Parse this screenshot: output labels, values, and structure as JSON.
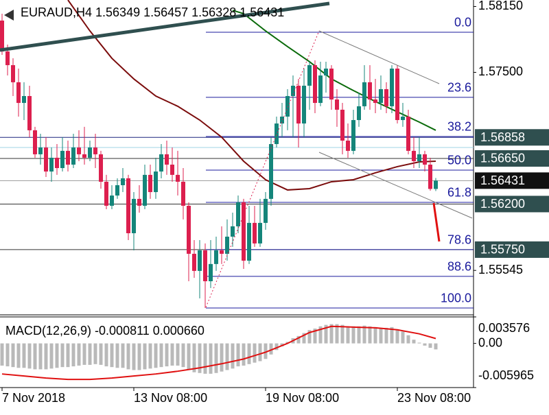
{
  "chart_data": [
    {
      "type": "candlestick",
      "title": "EURAUD,H4  1.56349 1.56457 1.56328 1.56431",
      "colors": {
        "up": "#14857a",
        "down": "#dc1f4e"
      },
      "xlim": [
        -0.375,
        85.875
      ],
      "xticks": [
        {
          "value": 0,
          "label": "7 Nov 2018"
        },
        {
          "value": 24,
          "label": "13 Nov 08:00"
        },
        {
          "value": 48,
          "label": "19 Nov 08:00"
        },
        {
          "value": 72,
          "label": "23 Nov 08:00"
        }
      ],
      "ylim": [
        1.55113,
        1.58214
      ],
      "yticks": [
        {
          "value": 1.5815,
          "label": "1.58150"
        },
        {
          "value": 1.575,
          "label": "1.57500"
        },
        1.55545
      ],
      "open": [
        1.58011,
        1.57706,
        1.57571,
        1.57402,
        1.57198,
        1.57266,
        1.56928,
        1.56691,
        1.56758,
        1.56521,
        1.56657,
        1.56555,
        1.56725,
        1.56589,
        1.56758,
        1.56691,
        1.56657,
        1.56758,
        1.56691,
        1.5642,
        1.56183,
        1.56284,
        1.56386,
        1.56454,
        1.55912,
        1.56251,
        1.56183,
        1.56488,
        1.56318,
        1.56521,
        1.56691,
        1.56589,
        1.56488,
        1.5642,
        1.56183,
        1.55709,
        1.5554,
        1.55743,
        1.55438,
        1.55608,
        1.55743,
        1.55709,
        1.55878,
        1.5598,
        1.56217,
        1.55641,
        1.56014,
        1.55811,
        1.56014,
        1.56251,
        1.56792,
        1.56995,
        1.57063,
        1.57266,
        1.57368,
        1.56995,
        1.57368,
        1.57571,
        1.57198,
        1.57469,
        1.57537,
        1.57232,
        1.57131,
        1.56826,
        1.56725,
        1.57029,
        1.57165,
        1.57402,
        1.57232,
        1.57198,
        1.57334,
        1.57165,
        1.57537,
        1.57029,
        1.57063,
        1.56725,
        1.56623,
        1.56691,
        1.56589,
        1.56349
      ],
      "high": [
        1.58079,
        1.57774,
        1.57639,
        1.57537,
        1.57402,
        1.57368,
        1.56962,
        1.56894,
        1.5686,
        1.56758,
        1.56792,
        1.5686,
        1.56826,
        1.56894,
        1.56928,
        1.56962,
        1.56826,
        1.56894,
        1.56725,
        1.56488,
        1.56386,
        1.56454,
        1.56555,
        1.56488,
        1.56318,
        1.56386,
        1.56589,
        1.56589,
        1.56657,
        1.56792,
        1.56826,
        1.56758,
        1.56725,
        1.56555,
        1.56217,
        1.55844,
        1.55844,
        1.55811,
        1.55844,
        1.55878,
        1.5598,
        1.56048,
        1.56115,
        1.56284,
        1.56251,
        1.56183,
        1.56183,
        1.56251,
        1.56318,
        1.5686,
        1.57063,
        1.57198,
        1.57334,
        1.57469,
        1.57435,
        1.57537,
        1.57605,
        1.57618,
        1.57605,
        1.57605,
        1.57571,
        1.57334,
        1.57198,
        1.56995,
        1.57131,
        1.573,
        1.57571,
        1.57571,
        1.57435,
        1.57469,
        1.57402,
        1.57571,
        1.57571,
        1.57198,
        1.57131,
        1.5686,
        1.5686,
        1.56725,
        1.56657,
        1.56457
      ],
      "low": [
        1.57672,
        1.57469,
        1.57266,
        1.57063,
        1.57029,
        1.5686,
        1.56657,
        1.56589,
        1.56467,
        1.5642,
        1.56488,
        1.56521,
        1.56521,
        1.56555,
        1.56623,
        1.56589,
        1.56623,
        1.56555,
        1.56352,
        1.56149,
        1.56149,
        1.56251,
        1.56318,
        1.55844,
        1.55743,
        1.56115,
        1.56149,
        1.56251,
        1.56251,
        1.56454,
        1.56488,
        1.5642,
        1.56284,
        1.56048,
        1.55438,
        1.55472,
        1.55269,
        1.55174,
        1.55371,
        1.5554,
        1.55608,
        1.55641,
        1.55777,
        1.55912,
        1.5556,
        1.55608,
        1.55777,
        1.55777,
        1.55946,
        1.56183,
        1.56758,
        1.5686,
        1.56928,
        1.5686,
        1.56758,
        1.5686,
        1.57131,
        1.57097,
        1.57165,
        1.573,
        1.57131,
        1.56962,
        1.56691,
        1.56657,
        1.56691,
        1.56962,
        1.57131,
        1.57131,
        1.57097,
        1.57131,
        1.57097,
        1.57097,
        1.56995,
        1.56962,
        1.56691,
        1.56555,
        1.56555,
        1.56521,
        1.56332,
        1.56328
      ],
      "close": [
        1.57706,
        1.57571,
        1.57402,
        1.57198,
        1.57266,
        1.56928,
        1.56691,
        1.56758,
        1.56521,
        1.56657,
        1.56555,
        1.56725,
        1.56589,
        1.56758,
        1.56691,
        1.56657,
        1.56758,
        1.56691,
        1.5642,
        1.56183,
        1.56284,
        1.56386,
        1.56454,
        1.55912,
        1.56251,
        1.56183,
        1.56488,
        1.56318,
        1.56521,
        1.56691,
        1.56589,
        1.56488,
        1.5642,
        1.56183,
        1.55709,
        1.5554,
        1.55743,
        1.55438,
        1.55608,
        1.55743,
        1.55709,
        1.55878,
        1.5598,
        1.56217,
        1.55641,
        1.56014,
        1.55811,
        1.56014,
        1.56251,
        1.56792,
        1.56995,
        1.57063,
        1.57266,
        1.57368,
        1.56995,
        1.57368,
        1.57571,
        1.57198,
        1.57469,
        1.57537,
        1.57232,
        1.57131,
        1.56826,
        1.56725,
        1.57029,
        1.57165,
        1.57402,
        1.57232,
        1.57198,
        1.57334,
        1.57165,
        1.57537,
        1.57029,
        1.57063,
        1.56725,
        1.56623,
        1.56691,
        1.56589,
        1.56349,
        1.56431
      ],
      "moving_averages": [
        {
          "color": "#7b0c0c",
          "x": [
            12,
            16,
            20,
            24,
            28,
            32,
            36,
            40,
            44,
            48,
            52,
            56,
            60,
            64,
            68,
            72,
            76,
            79
          ],
          "values": [
            1.58214,
            1.57909,
            1.57639,
            1.57435,
            1.57266,
            1.57165,
            1.57029,
            1.5686,
            1.56623,
            1.5644,
            1.56339,
            1.56352,
            1.5642,
            1.5644,
            1.56508,
            1.56569,
            1.56616,
            1.56623
          ]
        },
        {
          "color": "#0b6b0b",
          "x": [
            42,
            44,
            48,
            52,
            56,
            60,
            64,
            68,
            72,
            76,
            79
          ],
          "values": [
            1.58112,
            1.58079,
            1.57909,
            1.57754,
            1.57605,
            1.57435,
            1.5732,
            1.57212,
            1.5711,
            1.57009,
            1.56928
          ]
        }
      ],
      "hlines": [
        {
          "value": 1.56758,
          "color": "#9fd3e6"
        }
      ],
      "price_labels": [
        {
          "value": 1.56858,
          "color": "#2f4f4f",
          "line": "#1a237e"
        },
        {
          "value": 1.5665,
          "label": "1.56650",
          "color": "#2f4f4f",
          "line": "#333333"
        },
        {
          "value": 1.56431,
          "color": "#111111",
          "line": "#9a9a9a"
        },
        {
          "value": 1.562,
          "label": "1.56200",
          "color": "#2f4f4f",
          "line": "#333333"
        },
        {
          "value": 1.5575,
          "label": "1.55750",
          "color": "#2f4f4f",
          "line": "#333333"
        }
      ],
      "fibonacci": {
        "color": "#1a1a9c",
        "levels": [
          {
            "label": "0.0",
            "price": 1.57896
          },
          {
            "label": "23.6",
            "price": 1.57253
          },
          {
            "label": "38.2",
            "price": 1.56867
          },
          {
            "label": "50.0",
            "price": 1.56535
          },
          {
            "label": "61.8",
            "price": 1.56217
          },
          {
            "label": "78.6",
            "price": 1.5575
          },
          {
            "label": "88.6",
            "price": 1.55486
          },
          {
            "label": "100.0",
            "price": 1.55174
          }
        ]
      }
    },
    {
      "type": "macd",
      "title": "MACD(12,26,9) -0.000811 0.000660",
      "ylim": [
        -0.005965,
        0.003576
      ],
      "yticks": [
        0.003576,
        {
          "value": 0,
          "label": "0.00"
        },
        -0.005965
      ],
      "histogram": {
        "color": "#b9b9b9",
        "values": [
          -0.003,
          -0.0031,
          -0.0032,
          -0.0033,
          -0.0033,
          -0.0034,
          -0.0035,
          -0.0035,
          -0.0035,
          -0.0034,
          -0.0033,
          -0.0032,
          -0.0032,
          -0.0031,
          -0.003,
          -0.0029,
          -0.0029,
          -0.0028,
          -0.0029,
          -0.0031,
          -0.0032,
          -0.0033,
          -0.0033,
          -0.0035,
          -0.0036,
          -0.0036,
          -0.0035,
          -0.0034,
          -0.0033,
          -0.0032,
          -0.0031,
          -0.003,
          -0.003,
          -0.0032,
          -0.0036,
          -0.0039,
          -0.004,
          -0.0041,
          -0.0041,
          -0.004,
          -0.0038,
          -0.0036,
          -0.0034,
          -0.0031,
          -0.003,
          -0.0028,
          -0.0026,
          -0.0024,
          -0.0021,
          -0.0015,
          -0.0009,
          -0.0004,
          0.0002,
          0.0007,
          0.001,
          0.0014,
          0.0018,
          0.002,
          0.0023,
          0.0025,
          0.0026,
          0.0026,
          0.0025,
          0.0023,
          0.0023,
          0.0023,
          0.0024,
          0.0023,
          0.0022,
          0.0021,
          0.0021,
          0.0022,
          0.0019,
          0.0016,
          0.0011,
          0.0005,
          0.0001,
          -0.0003,
          -0.0006,
          -0.000811
        ]
      },
      "signal": {
        "color": "#e01010",
        "x": [
          0,
          4,
          8,
          12,
          16,
          20,
          24,
          28,
          32,
          36,
          40,
          44,
          48,
          52,
          56,
          60,
          64,
          68,
          72,
          76,
          79
        ],
        "values": [
          -0.00413,
          -0.0044,
          -0.00468,
          -0.00487,
          -0.00487,
          -0.00468,
          -0.0044,
          -0.00413,
          -0.00376,
          -0.0033,
          -0.00275,
          -0.00211,
          -0.00119,
          0,
          0.00147,
          0.0023,
          0.0022,
          0.00211,
          0.00184,
          0.00129,
          0.00066
        ]
      }
    }
  ]
}
